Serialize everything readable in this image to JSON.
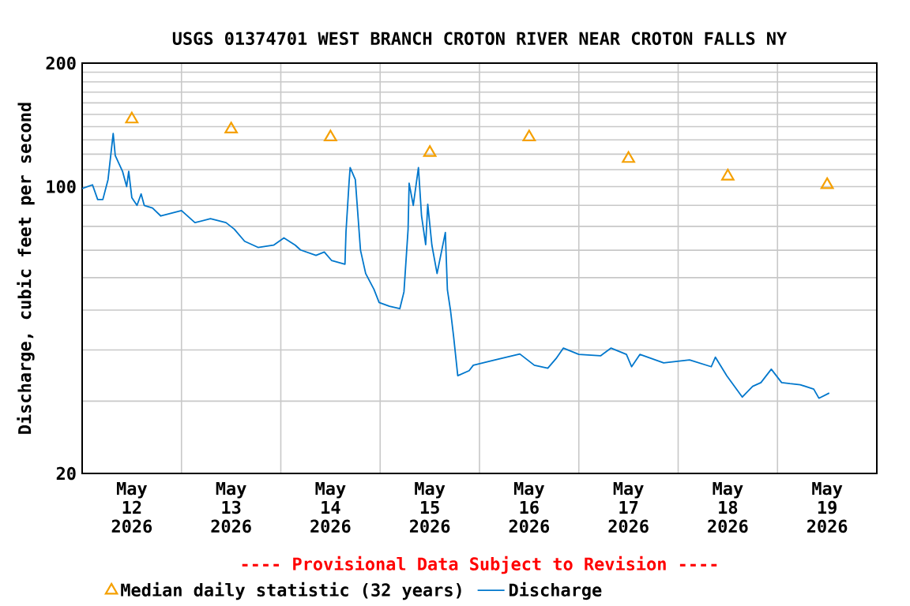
{
  "chart_data": {
    "type": "line",
    "title": "USGS 01374701 WEST BRANCH CROTON RIVER NEAR CROTON FALLS NY",
    "ylabel": "Discharge, cubic feet per second",
    "annotations": [
      "---- Provisional Data Subject to Revision ----"
    ],
    "log": true,
    "grid": true,
    "legend": "bottom",
    "xlim": [
      "2026-05-12T00:00",
      "2026-05-20T00:00"
    ],
    "xticks": [
      {
        "value": "2026-05-12T12:00",
        "label": "May 12 2026"
      },
      {
        "value": "2026-05-13T00:00",
        "label": null
      },
      {
        "value": "2026-05-13T12:00",
        "label": "May 13 2026"
      },
      {
        "value": "2026-05-14T00:00",
        "label": null
      },
      {
        "value": "2026-05-14T12:00",
        "label": "May 14 2026"
      },
      {
        "value": "2026-05-15T00:00",
        "label": null
      },
      {
        "value": "2026-05-15T12:00",
        "label": "May 15 2026"
      },
      {
        "value": "2026-05-16T00:00",
        "label": null
      },
      {
        "value": "2026-05-16T12:00",
        "label": "May 16 2026"
      },
      {
        "value": "2026-05-17T00:00",
        "label": null
      },
      {
        "value": "2026-05-17T12:00",
        "label": "May 17 2026"
      },
      {
        "value": "2026-05-18T00:00",
        "label": null
      },
      {
        "value": "2026-05-18T12:00",
        "label": "May 18 2026"
      },
      {
        "value": "2026-05-19T00:00",
        "label": null
      },
      {
        "value": "2026-05-19T12:00",
        "label": "May 19 2026"
      }
    ],
    "ylim": [
      20,
      200
    ],
    "yticks": [
      20,
      {
        "value": 30,
        "label": null
      },
      {
        "value": 40,
        "label": null
      },
      {
        "value": 50,
        "label": null
      },
      {
        "value": 60,
        "label": null
      },
      {
        "value": 70,
        "label": null
      },
      {
        "value": 80,
        "label": null
      },
      {
        "value": 90,
        "label": null
      },
      100,
      {
        "value": 110,
        "label": null
      },
      {
        "value": 120,
        "label": null
      },
      {
        "value": 130,
        "label": null
      },
      {
        "value": 140,
        "label": null
      },
      {
        "value": 150,
        "label": null
      },
      {
        "value": 160,
        "label": null
      },
      {
        "value": 170,
        "label": null
      },
      {
        "value": 180,
        "label": null
      },
      {
        "value": 190,
        "label": null
      },
      200
    ],
    "series": [
      {
        "name": "Median daily statistic (32 years)",
        "type": "scatter",
        "marker": "triangle",
        "color": "#f5a000",
        "x": [
          "2026-05-12T12:00",
          "2026-05-13T12:00",
          "2026-05-14T12:00",
          "2026-05-15T12:00",
          "2026-05-16T12:00",
          "2026-05-17T12:00",
          "2026-05-18T12:00",
          "2026-05-19T12:00"
        ],
        "values": [
          146,
          138,
          132,
          121,
          132,
          117,
          106,
          101
        ]
      },
      {
        "name": "Discharge",
        "color": "#0077cc",
        "x": [
          "2026-05-12T00:00",
          "2026-05-12T02:30",
          "2026-05-12T03:45",
          "2026-05-12T05:00",
          "2026-05-12T06:15",
          "2026-05-12T07:30",
          "2026-05-12T08:00",
          "2026-05-12T09:45",
          "2026-05-12T10:45",
          "2026-05-12T11:15",
          "2026-05-12T12:00",
          "2026-05-12T13:15",
          "2026-05-12T14:15",
          "2026-05-12T15:00",
          "2026-05-12T17:00",
          "2026-05-12T19:00",
          "2026-05-13T00:00",
          "2026-05-13T03:15",
          "2026-05-13T07:00",
          "2026-05-13T10:45",
          "2026-05-13T12:45",
          "2026-05-13T15:15",
          "2026-05-13T18:30",
          "2026-05-13T22:15",
          "2026-05-14T00:45",
          "2026-05-14T03:30",
          "2026-05-14T04:45",
          "2026-05-14T08:30",
          "2026-05-14T10:30",
          "2026-05-14T12:15",
          "2026-05-14T15:30",
          "2026-05-14T15:45",
          "2026-05-14T16:30",
          "2026-05-14T16:45",
          "2026-05-14T18:00",
          "2026-05-14T19:15",
          "2026-05-14T20:30",
          "2026-05-14T22:30",
          "2026-05-14T23:45",
          "2026-05-15T02:15",
          "2026-05-15T04:45",
          "2026-05-15T05:45",
          "2026-05-15T06:45",
          "2026-05-15T07:00",
          "2026-05-15T08:00",
          "2026-05-15T09:15",
          "2026-05-15T10:00",
          "2026-05-15T11:00",
          "2026-05-15T11:30",
          "2026-05-15T12:30",
          "2026-05-15T13:45",
          "2026-05-15T15:45",
          "2026-05-15T16:15",
          "2026-05-15T17:00",
          "2026-05-15T17:45",
          "2026-05-15T18:45",
          "2026-05-15T21:30",
          "2026-05-15T22:30",
          "2026-05-16T03:45",
          "2026-05-16T09:45",
          "2026-05-16T13:15",
          "2026-05-16T16:30",
          "2026-05-16T18:30",
          "2026-05-16T20:15",
          "2026-05-17T00:00",
          "2026-05-17T05:15",
          "2026-05-17T07:45",
          "2026-05-17T11:30",
          "2026-05-17T12:45",
          "2026-05-17T14:45",
          "2026-05-17T20:30",
          "2026-05-18T02:45",
          "2026-05-18T08:00",
          "2026-05-18T09:00",
          "2026-05-18T11:45",
          "2026-05-18T15:30",
          "2026-05-18T18:00",
          "2026-05-18T20:00",
          "2026-05-18T22:30",
          "2026-05-19T01:00",
          "2026-05-19T03:00",
          "2026-05-19T05:30",
          "2026-05-19T08:45",
          "2026-05-19T10:00",
          "2026-05-19T12:30"
        ],
        "values": [
          98.9,
          101,
          93,
          93,
          104,
          134.8,
          119,
          109,
          100,
          109,
          94,
          90,
          96,
          90,
          88.7,
          84.8,
          87.4,
          81.7,
          83.5,
          81.7,
          78.8,
          73.6,
          71.1,
          72,
          75,
          72,
          70.1,
          68,
          69.3,
          66.1,
          64.7,
          77.7,
          102.8,
          111.3,
          104,
          70,
          61.4,
          56.2,
          52.2,
          51.1,
          50.4,
          55.4,
          78.8,
          101.9,
          90,
          111.3,
          84.8,
          72.2,
          90.6,
          72,
          61.4,
          77.3,
          56,
          49.9,
          43.1,
          34.6,
          35.6,
          36.7,
          37.8,
          39.1,
          36.7,
          36.1,
          38.1,
          40.4,
          39,
          38.7,
          40.4,
          39,
          36.4,
          39,
          37.2,
          37.8,
          36.4,
          38.4,
          34.6,
          30.7,
          32.6,
          33.3,
          35.9,
          33.3,
          33.1,
          32.9,
          32.1,
          30.5,
          31.4
        ]
      }
    ]
  }
}
